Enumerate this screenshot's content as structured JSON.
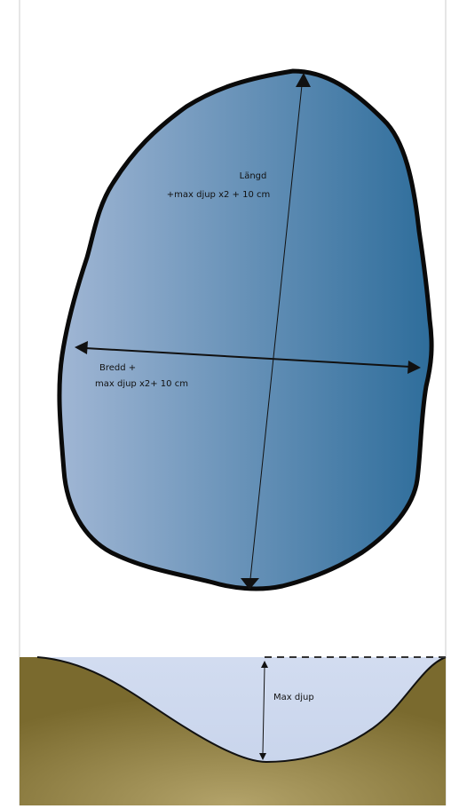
{
  "labels": {
    "length_line1": "Längd",
    "length_line2": "+max djup x2 + 10 cm",
    "width_line1": "Bredd +",
    "width_line2": "max djup x2+ 10 cm",
    "depth": "Max djup"
  },
  "colors": {
    "pond_light": "#a0b6d4",
    "pond_dark": "#2e6d9b",
    "outline": "#0a0a0a",
    "water_cross_section": "#c9d5ec",
    "soil_dark": "#7a6a2e",
    "soil_light": "#b3a36a"
  }
}
